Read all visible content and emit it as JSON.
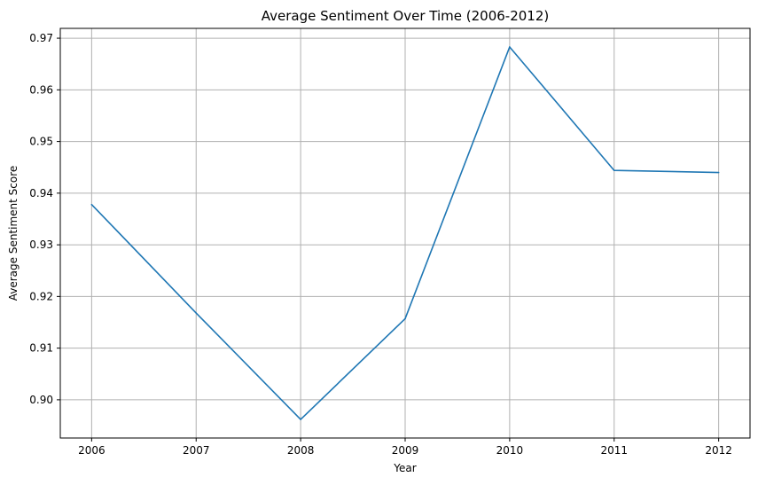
{
  "chart_data": {
    "type": "line",
    "title": "Average Sentiment Over Time (2006-2012)",
    "xlabel": "Year",
    "ylabel": "Average Sentiment Score",
    "x": [
      2006,
      2007,
      2008,
      2009,
      2010,
      2011,
      2012
    ],
    "x_tick_labels": [
      "2006",
      "2007",
      "2008",
      "2009",
      "2010",
      "2011",
      "2012"
    ],
    "series": [
      {
        "values": [
          0.9378,
          0.9168,
          0.8962,
          0.9157,
          0.9683,
          0.9444,
          0.944
        ]
      }
    ],
    "y_ticks": [
      0.9,
      0.91,
      0.92,
      0.93,
      0.94,
      0.95,
      0.96,
      0.97
    ],
    "y_tick_labels": [
      "0.90",
      "0.91",
      "0.92",
      "0.93",
      "0.94",
      "0.95",
      "0.96",
      "0.97"
    ],
    "xlim": [
      2005.7,
      2012.3
    ],
    "ylim": [
      0.8926,
      0.9719
    ],
    "grid": true,
    "line_color": "#1f77b4"
  }
}
